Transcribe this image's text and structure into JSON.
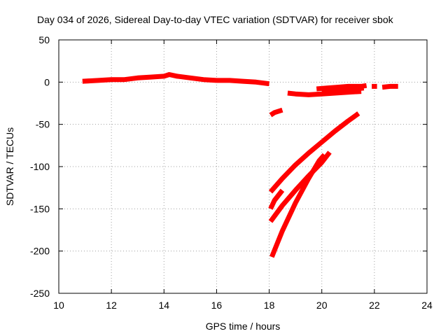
{
  "chart_data": {
    "type": "scatter",
    "title": "Day 034 of 2026, Sidereal Day-to-day VTEC variation (SDTVAR) for receiver sbok",
    "xlabel": "GPS time / hours",
    "ylabel": "SDTVAR / TECUs",
    "xlim": [
      10,
      24
    ],
    "ylim": [
      -250,
      50
    ],
    "xticks": [
      10,
      12,
      14,
      16,
      18,
      20,
      22,
      24
    ],
    "yticks": [
      50,
      0,
      -50,
      -100,
      -150,
      -200,
      -250
    ],
    "grid": true,
    "legend": false,
    "marker_color": "#ff0000",
    "series": [
      {
        "name": "track-1",
        "x": [
          10.9,
          11.5,
          12.0,
          12.5,
          13.0,
          13.5,
          14.0,
          14.2,
          14.5,
          15.0,
          15.5,
          16.0,
          16.5,
          17.0,
          17.5,
          18.0
        ],
        "y": [
          1,
          2,
          3,
          3,
          5,
          6,
          7,
          9,
          7,
          5,
          3,
          2,
          2,
          1,
          0,
          -2
        ]
      },
      {
        "name": "track-2",
        "x": [
          18.05,
          18.2,
          18.5
        ],
        "y": [
          -39,
          -36,
          -33
        ]
      },
      {
        "name": "track-3",
        "x": [
          18.7,
          19.0,
          19.5,
          20.0,
          20.5,
          21.0,
          21.5
        ],
        "y": [
          -13,
          -14,
          -15,
          -14,
          -13,
          -12,
          -11
        ]
      },
      {
        "name": "track-4",
        "x": [
          19.8,
          20.2,
          20.6,
          21.0,
          21.5,
          21.7
        ],
        "y": [
          -8,
          -7,
          -6,
          -5,
          -5,
          -4
        ]
      },
      {
        "name": "track-5",
        "x": [
          20.0,
          20.5,
          21.0,
          21.6
        ],
        "y": [
          -12,
          -11,
          -9,
          -7
        ]
      },
      {
        "name": "track-6",
        "x": [
          21.9,
          22.1
        ],
        "y": [
          -5,
          -5
        ]
      },
      {
        "name": "track-7",
        "x": [
          22.3,
          22.6,
          22.9
        ],
        "y": [
          -6,
          -5,
          -5
        ]
      },
      {
        "name": "track-8",
        "x": [
          18.05,
          18.5,
          19.0,
          19.5,
          20.0,
          20.5,
          21.0,
          21.4
        ],
        "y": [
          -130,
          -114,
          -98,
          -84,
          -71,
          -58,
          -46,
          -37
        ]
      },
      {
        "name": "track-9",
        "x": [
          18.05,
          18.2,
          18.5
        ],
        "y": [
          -150,
          -140,
          -128
        ]
      },
      {
        "name": "track-10",
        "x": [
          18.05,
          18.5,
          19.0,
          19.5,
          20.0,
          20.3
        ],
        "y": [
          -165,
          -146,
          -128,
          -111,
          -95,
          -83
        ]
      },
      {
        "name": "track-11",
        "x": [
          18.1,
          18.5,
          19.0,
          19.5,
          19.9,
          20.1
        ],
        "y": [
          -207,
          -176,
          -143,
          -114,
          -93,
          -86
        ]
      }
    ]
  }
}
